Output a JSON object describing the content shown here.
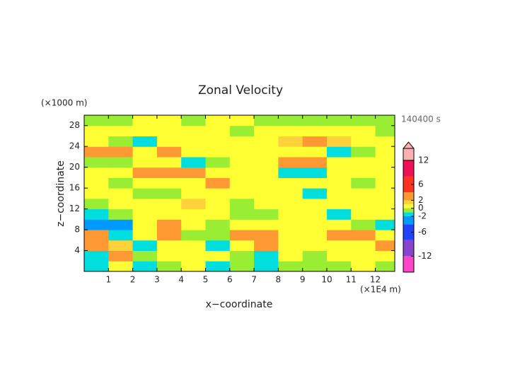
{
  "chart_data": {
    "type": "contour",
    "title": "Zonal Velocity",
    "xlabel": "x−coordinate",
    "ylabel": "z−coordinate",
    "x_unit": "(×1E4 m)",
    "y_unit": "(×1000 m)",
    "time_label": "140400 s",
    "xlim": [
      0,
      12.8
    ],
    "ylim": [
      0,
      30
    ],
    "xticks": [
      1,
      2,
      3,
      4,
      5,
      6,
      7,
      8,
      9,
      10,
      11,
      12
    ],
    "yticks": [
      4,
      8,
      12,
      16,
      20,
      24,
      28
    ],
    "x": [
      0.5,
      1.5,
      2.5,
      3.5,
      4.5,
      5.5,
      6.5,
      7.5,
      8.5,
      9.5,
      10.5,
      11.5,
      12.5
    ],
    "z": [
      1,
      3,
      5,
      7,
      9,
      11,
      13,
      15,
      17,
      19,
      21,
      23,
      25,
      27,
      29
    ],
    "values": [
      [
        -1.5,
        0.5,
        -1.5,
        -0.5,
        0.5,
        -1.5,
        -0.5,
        -1.5,
        -0.5,
        -0.5,
        -0.5,
        0.5,
        -0.5
      ],
      [
        -1.5,
        2.5,
        -0.5,
        0.5,
        0.5,
        0.5,
        -0.5,
        -1.5,
        0.5,
        -0.5,
        0.5,
        0.5,
        0.5
      ],
      [
        2.5,
        1.5,
        -1.5,
        0.5,
        0.5,
        -1.5,
        0.5,
        2.5,
        0.5,
        0.5,
        0.5,
        0.5,
        2.5
      ],
      [
        2.5,
        -1.5,
        0.5,
        2.5,
        -0.5,
        -0.5,
        2.5,
        2.5,
        0.5,
        0.5,
        2.5,
        2.5,
        0.5
      ],
      [
        -3,
        -3,
        0.5,
        2.5,
        0.5,
        -0.5,
        0.5,
        0.5,
        0.5,
        0.5,
        0.5,
        -0.5,
        -1.5
      ],
      [
        -1.5,
        -0.5,
        0.5,
        0.5,
        0.5,
        0.5,
        -0.5,
        -0.5,
        0.5,
        0.5,
        -1.5,
        0.5,
        0.5
      ],
      [
        -0.5,
        0.5,
        0.5,
        0.5,
        1.5,
        0.5,
        -0.5,
        0.5,
        0.5,
        0.5,
        0.5,
        0.5,
        0.5
      ],
      [
        0.5,
        0.5,
        -0.5,
        -0.5,
        0.5,
        0.5,
        0.5,
        0.5,
        0.5,
        -1.5,
        0.5,
        0.5,
        0.5
      ],
      [
        0.5,
        -0.5,
        0.5,
        0.5,
        0.5,
        2.5,
        0.5,
        0.5,
        0.5,
        0.5,
        0.5,
        -0.5,
        0.5
      ],
      [
        0.5,
        0.5,
        2.5,
        2.5,
        2.5,
        0.5,
        0.5,
        0.5,
        -1.5,
        -1.5,
        0.5,
        0.5,
        0.5
      ],
      [
        -0.5,
        -0.5,
        0.5,
        0.5,
        -1.5,
        -0.5,
        0.5,
        0.5,
        2.5,
        2.5,
        0.5,
        0.5,
        0.5
      ],
      [
        2.5,
        2.5,
        0.5,
        2.5,
        0.5,
        0.5,
        0.5,
        0.5,
        0.5,
        0.5,
        -1.5,
        -0.5,
        0.5
      ],
      [
        0.5,
        -0.5,
        -1.5,
        0.5,
        0.5,
        0.5,
        0.5,
        0.5,
        1.5,
        2.5,
        1.5,
        0.5,
        0.5
      ],
      [
        0.5,
        0.5,
        0.5,
        0.5,
        0.5,
        0.5,
        -0.5,
        0.5,
        0.5,
        0.5,
        0.5,
        0.5,
        -0.5
      ],
      [
        -0.5,
        -0.5,
        0.5,
        0.5,
        -0.5,
        0.5,
        0.5,
        -0.5,
        -0.5,
        -0.5,
        -0.5,
        -0.5,
        -0.5
      ]
    ],
    "levels": [
      -12,
      -8,
      -4,
      -2,
      -1,
      0,
      1,
      2,
      4,
      8,
      12
    ],
    "colors": [
      "#ff44cc",
      "#8844cc",
      "#2244ff",
      "#0099ff",
      "#00dddd",
      "#99ee33",
      "#ffff33",
      "#ffd23c",
      "#ff9933",
      "#ff3322",
      "#ee1155",
      "#ffb0b0"
    ],
    "clim": [
      -16,
      15
    ],
    "cticks": [
      12,
      6,
      2,
      0,
      -2,
      -6,
      -12
    ]
  }
}
